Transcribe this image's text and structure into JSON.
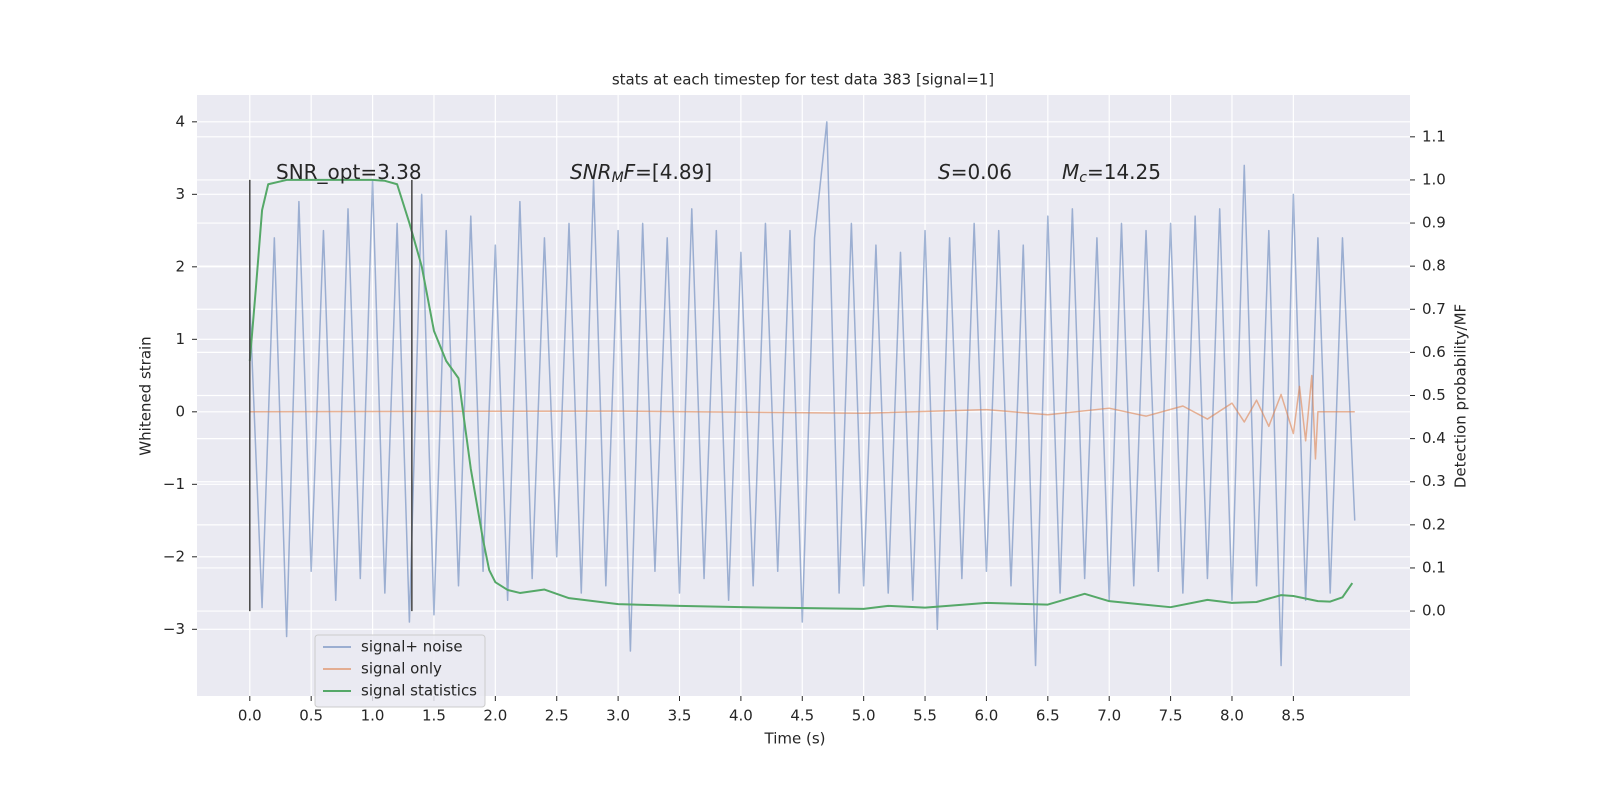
{
  "chart_data": {
    "type": "line",
    "title": "stats at each timestep for test data 383 [signal=1]",
    "xlabel": "Time (s)",
    "ylabel": "Whitened strain",
    "y2label": "Detection probability/MF",
    "xlim": [
      -0.43,
      9.45
    ],
    "ylim": [
      -3.92,
      4.37
    ],
    "y2lim": [
      -0.197,
      1.197
    ],
    "xticks": [
      {
        "value": 0,
        "label": "0.0"
      },
      0.5,
      {
        "value": 1,
        "label": "1.0"
      },
      1.5,
      {
        "value": 2,
        "label": "2.0"
      },
      2.5,
      {
        "value": 3,
        "label": "3.0"
      },
      3.5,
      {
        "value": 4,
        "label": "4.0"
      },
      4.5,
      {
        "value": 5,
        "label": "5.0"
      },
      5.5,
      {
        "value": 6,
        "label": "6.0"
      },
      6.5,
      {
        "value": 7,
        "label": "7.0"
      },
      7.5,
      {
        "value": 8,
        "label": "8.0"
      },
      8.5
    ],
    "yticks": [
      {
        "value": -3,
        "label": "−3"
      },
      {
        "value": -2,
        "label": "−2"
      },
      {
        "value": -1,
        "label": "−1"
      },
      0,
      1,
      2,
      3,
      4
    ],
    "y2ticks": [
      {
        "value": 0,
        "label": "0.0"
      },
      0.1,
      0.2,
      0.3,
      0.4,
      0.5,
      0.6,
      0.7,
      0.8,
      0.9,
      {
        "value": 1,
        "label": "1.0"
      },
      1.1
    ],
    "grid": true,
    "background": "#eaeaf2",
    "legend": "lower left",
    "series": [
      {
        "name": "signal+ noise",
        "color": "#4c72b0",
        "opacity": 0.5,
        "x": [
          0,
          0.1,
          0.2,
          0.3,
          0.4,
          0.5,
          0.6,
          0.7,
          0.8,
          0.9,
          1,
          1.1,
          1.2,
          1.3,
          1.4,
          1.5,
          1.6,
          1.7,
          1.8,
          1.9,
          2,
          2.1,
          2.2,
          2.3,
          2.4,
          2.5,
          2.6,
          2.7,
          2.8,
          2.9,
          3,
          3.1,
          3.2,
          3.3,
          3.4,
          3.5,
          3.6,
          3.7,
          3.8,
          3.9,
          4,
          4.1,
          4.2,
          4.3,
          4.4,
          4.5,
          4.6,
          4.7,
          4.8,
          4.9,
          5,
          5.1,
          5.2,
          5.3,
          5.4,
          5.5,
          5.6,
          5.7,
          5.8,
          5.9,
          6,
          6.1,
          6.2,
          6.3,
          6.4,
          6.5,
          6.6,
          6.7,
          6.8,
          6.9,
          7,
          7.1,
          7.2,
          7.3,
          7.4,
          7.5,
          7.6,
          7.7,
          7.8,
          7.9,
          8,
          8.1,
          8.2,
          8.3,
          8.4,
          8.5,
          8.6,
          8.7,
          8.8,
          8.9,
          9
        ],
        "values": [
          1.5,
          -2.7,
          2.4,
          -3.1,
          2.9,
          -2.2,
          2.5,
          -2.6,
          2.8,
          -2.3,
          3.2,
          -2.5,
          2.6,
          -2.9,
          3.0,
          -2.8,
          2.5,
          -2.4,
          2.7,
          -2.2,
          2.3,
          -2.6,
          2.9,
          -2.3,
          2.4,
          -2.0,
          2.6,
          -2.5,
          3.2,
          -2.4,
          2.5,
          -3.3,
          2.6,
          -2.2,
          2.4,
          -2.5,
          2.8,
          -2.3,
          2.5,
          -2.6,
          2.2,
          -2.4,
          2.6,
          -2.2,
          2.5,
          -2.9,
          2.4,
          4.0,
          -2.5,
          2.6,
          -2.4,
          2.3,
          -2.5,
          2.2,
          -2.6,
          2.5,
          -3.0,
          2.4,
          -2.3,
          2.6,
          -2.2,
          2.5,
          -2.4,
          2.3,
          -3.5,
          2.7,
          -2.5,
          2.8,
          -2.3,
          2.4,
          -2.6,
          2.6,
          -2.4,
          2.5,
          -2.2,
          2.6,
          -2.5,
          2.7,
          -2.3,
          2.8,
          -2.6,
          3.4,
          -2.4,
          2.5,
          -3.5,
          3.0,
          -2.6,
          2.4,
          -2.5,
          2.4,
          -1.5
        ]
      },
      {
        "name": "signal only",
        "color": "#dd8452",
        "opacity": 0.6,
        "x": [
          0,
          3,
          5,
          6,
          6.5,
          7,
          7.3,
          7.6,
          7.8,
          8.0,
          8.1,
          8.2,
          8.3,
          8.4,
          8.5,
          8.55,
          8.6,
          8.65,
          8.68,
          8.7,
          9.0
        ],
        "values": [
          0,
          0.01,
          -0.02,
          0.03,
          -0.04,
          0.05,
          -0.06,
          0.08,
          -0.1,
          0.12,
          -0.14,
          0.16,
          -0.2,
          0.24,
          -0.3,
          0.35,
          -0.4,
          0.5,
          -0.65,
          0,
          0
        ]
      },
      {
        "name": "signal statistics",
        "color": "#55a868",
        "opacity": 1,
        "axis": "y2",
        "x": [
          0,
          0.05,
          0.1,
          0.15,
          0.3,
          0.6,
          1.0,
          1.1,
          1.2,
          1.3,
          1.4,
          1.5,
          1.6,
          1.7,
          1.8,
          1.9,
          1.95,
          2.0,
          2.1,
          2.2,
          2.4,
          2.6,
          3.0,
          3.5,
          4.0,
          5.0,
          5.2,
          5.5,
          6.0,
          6.5,
          6.8,
          7.0,
          7.5,
          7.8,
          8.0,
          8.2,
          8.4,
          8.5,
          8.7,
          8.8,
          8.9,
          8.98
        ],
        "values": [
          0.58,
          0.75,
          0.93,
          0.99,
          1.0,
          1.0,
          1.0,
          0.998,
          0.99,
          0.9,
          0.8,
          0.65,
          0.58,
          0.54,
          0.33,
          0.165,
          0.095,
          0.067,
          0.049,
          0.042,
          0.05,
          0.03,
          0.016,
          0.012,
          0.009,
          0.005,
          0.012,
          0.008,
          0.019,
          0.015,
          0.04,
          0.023,
          0.009,
          0.026,
          0.019,
          0.021,
          0.037,
          0.035,
          0.023,
          0.022,
          0.032,
          0.065
        ]
      }
    ],
    "vlines": {
      "x": [
        0,
        1.32
      ],
      "ymin": 0,
      "ymax": 1,
      "axis": "y2",
      "color": "#444444"
    },
    "annotations": [
      {
        "parts": [
          {
            "text": "SNR_opt=3.38",
            "style": "normal"
          }
        ]
      },
      {
        "parts": [
          {
            "text": "SNR",
            "style": "italic"
          },
          {
            "text": "M",
            "style": "sub"
          },
          {
            "text": "F",
            "style": "italic"
          },
          {
            "text": "=[4.89]",
            "style": "normal"
          }
        ]
      },
      {
        "parts": [
          {
            "text": "S",
            "style": "italic"
          },
          {
            "text": "=0.06",
            "style": "normal"
          }
        ]
      },
      {
        "parts": [
          {
            "text": "M",
            "style": "italic"
          },
          {
            "text": "c",
            "style": "sub"
          },
          {
            "text": "=14.25",
            "style": "normal"
          }
        ]
      }
    ]
  }
}
